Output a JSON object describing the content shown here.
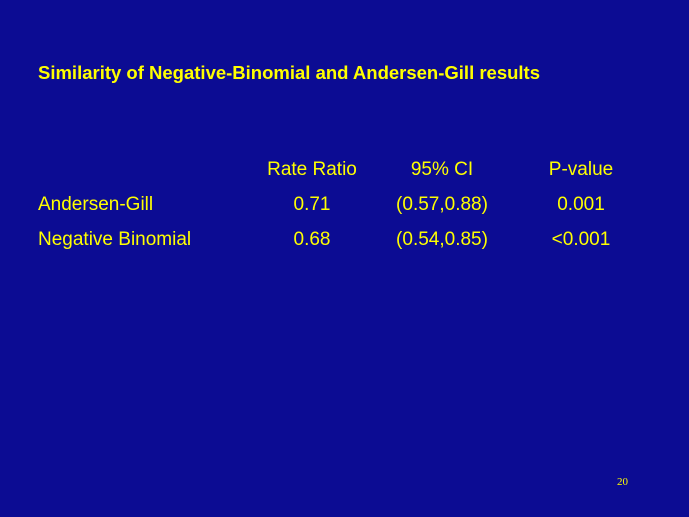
{
  "title": "Similarity of Negative-Binomial and Andersen-Gill results",
  "table": {
    "header": [
      "",
      "Rate Ratio",
      "95% CI",
      "P-value"
    ],
    "rows": [
      [
        "Andersen-Gill",
        "0.71",
        "(0.57,0.88)",
        "0.001"
      ],
      [
        "Negative Binomial",
        "0.68",
        "(0.54,0.85)",
        "<0.001"
      ]
    ]
  },
  "page_number": "20"
}
